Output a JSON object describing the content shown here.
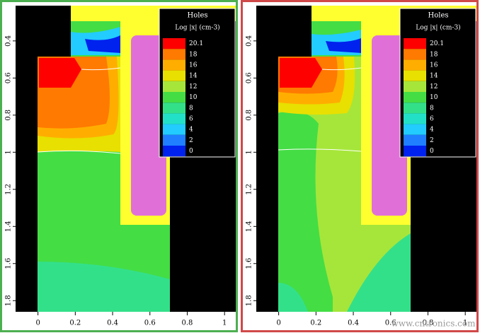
{
  "chart_data": [
    {
      "type": "contour",
      "title": "Holes",
      "subtitle": "Log |x| (cm-3)",
      "border_color": "#4caf50",
      "xlim": [
        -0.12,
        1.06
      ],
      "xticks": [
        0,
        0.2,
        0.4,
        0.6,
        0.8,
        1
      ],
      "ylim": [
        0.21,
        1.86
      ],
      "yticks": [
        0.4,
        0.6,
        0.8,
        1,
        1.2,
        1.4,
        1.6,
        1.8
      ],
      "colorbar": [
        {
          "value": 20.1,
          "color": "#ff0000"
        },
        {
          "value": 18,
          "color": "#ff7a00"
        },
        {
          "value": 16,
          "color": "#ffae00"
        },
        {
          "value": 14,
          "color": "#e8e000"
        },
        {
          "value": 12,
          "color": "#a6e63a"
        },
        {
          "value": 10,
          "color": "#44dd44"
        },
        {
          "value": 8,
          "color": "#33e08a"
        },
        {
          "value": 6,
          "color": "#22e0c8"
        },
        {
          "value": 4,
          "color": "#22ccff"
        },
        {
          "value": 2,
          "color": "#1f7fff"
        },
        {
          "value": 0,
          "color": "#0022ee"
        }
      ]
    },
    {
      "type": "contour",
      "title": "Holes",
      "subtitle": "Log |x| (cm-3)",
      "border_color": "#d04848",
      "xlim": [
        -0.12,
        1.06
      ],
      "xticks": [
        0,
        0.2,
        0.4,
        0.6,
        0.8,
        1
      ],
      "ylim": [
        0.21,
        1.86
      ],
      "yticks": [
        0.4,
        0.6,
        0.8,
        1,
        1.2,
        1.4,
        1.6,
        1.8
      ],
      "colorbar": [
        {
          "value": 20.1,
          "color": "#ff0000"
        },
        {
          "value": 18,
          "color": "#ff7a00"
        },
        {
          "value": 16,
          "color": "#ffae00"
        },
        {
          "value": 14,
          "color": "#e8e000"
        },
        {
          "value": 12,
          "color": "#a6e63a"
        },
        {
          "value": 10,
          "color": "#44dd44"
        },
        {
          "value": 8,
          "color": "#33e08a"
        },
        {
          "value": 6,
          "color": "#22e0c8"
        },
        {
          "value": 4,
          "color": "#22ccff"
        },
        {
          "value": 2,
          "color": "#1f7fff"
        },
        {
          "value": 0,
          "color": "#0022ee"
        }
      ]
    }
  ],
  "watermark": "www.cntronics.com"
}
